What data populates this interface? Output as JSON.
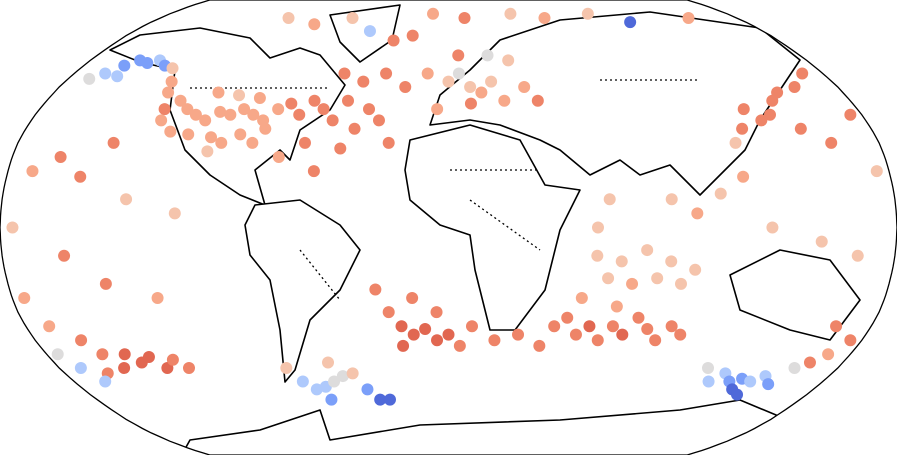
{
  "map": {
    "projection": "robinson",
    "points": {
      "lon": [
        -160,
        -155,
        -150,
        -145,
        -140,
        -165,
        -170,
        -158,
        -135,
        -130,
        -128,
        -125,
        -124,
        -120,
        -115,
        -110,
        -105,
        -100,
        -95,
        -90,
        -85,
        -80,
        -75,
        -70,
        -118,
        -110,
        -100,
        -95,
        -88,
        -82,
        -105,
        -95,
        -85,
        -78,
        -100,
        -65,
        -60,
        -55,
        -50,
        -45,
        -40,
        -35,
        -30,
        -25,
        -50,
        -40,
        -30,
        -20,
        -45,
        -60,
        -55,
        -70,
        -45,
        -30,
        -20,
        -60,
        -10,
        10,
        40,
        60,
        90,
        110,
        150,
        -100,
        -80,
        0,
        5,
        10,
        15,
        20,
        25,
        -5,
        10,
        30,
        20,
        35,
        40,
        5,
        -10,
        130,
        135,
        140,
        145,
        150,
        125,
        160,
        170,
        120,
        150,
        160,
        175,
        120,
        110,
        100,
        130,
        150,
        165,
        175,
        -170,
        -160,
        -150,
        -140,
        -175,
        -155,
        -140,
        -120,
        -130,
        -110,
        60,
        70,
        80,
        90,
        100,
        65,
        75,
        85,
        95,
        60,
        65,
        90,
        -20,
        -15,
        -10,
        -5,
        0,
        -25,
        -30,
        -15,
        5,
        -20,
        10,
        -5,
        45,
        50,
        55,
        60,
        65,
        70,
        75,
        80,
        85,
        90,
        95,
        100,
        40,
        55,
        70,
        30,
        20,
        -145,
        -140,
        -135,
        -130,
        -125,
        -120,
        -150,
        -155,
        -160,
        -170,
        -165,
        -175,
        -160,
        -170,
        -175,
        -70,
        -65,
        -60,
        -55,
        -50,
        -45,
        -60,
        -40,
        -35,
        -30,
        -75,
        -55,
        130,
        135,
        140,
        145,
        150,
        155,
        140,
        145,
        160,
        120,
        125,
        165,
        170,
        175,
        165
      ],
      "lat": [
        58,
        60,
        59,
        60,
        58,
        55,
        53,
        54,
        57,
        52,
        48,
        42,
        38,
        45,
        42,
        40,
        38,
        41,
        40,
        42,
        40,
        38,
        42,
        44,
        34,
        33,
        32,
        30,
        33,
        30,
        48,
        47,
        46,
        35,
        27,
        40,
        45,
        42,
        38,
        45,
        35,
        42,
        38,
        30,
        55,
        52,
        55,
        50,
        28,
        30,
        20,
        25,
        72,
        68,
        70,
        78,
        80,
        78,
        80,
        78,
        80,
        76,
        78,
        78,
        75,
        52,
        55,
        50,
        48,
        52,
        45,
        42,
        44,
        60,
        62,
        50,
        45,
        62,
        55,
        42,
        38,
        40,
        45,
        48,
        35,
        50,
        55,
        30,
        35,
        30,
        40,
        18,
        12,
        5,
        0,
        -5,
        -10,
        20,
        20,
        25,
        18,
        30,
        0,
        -10,
        -20,
        -25,
        10,
        5,
        -10,
        -12,
        -8,
        -12,
        -15,
        -18,
        -20,
        -18,
        -20,
        0,
        10,
        10,
        -35,
        -38,
        -36,
        -40,
        -38,
        -30,
        -22,
        -25,
        -42,
        -42,
        -35,
        -30,
        -35,
        -32,
        -38,
        -35,
        -40,
        -35,
        -38,
        -32,
        -36,
        -40,
        -35,
        -38,
        -42,
        -25,
        -28,
        -38,
        -40,
        -45,
        -48,
        -46,
        -50,
        -47,
        -50,
        -50,
        -45,
        -52,
        -50,
        -55,
        -45,
        -40,
        -35,
        -25,
        -55,
        -58,
        -57,
        -55,
        -53,
        -52,
        -62,
        -58,
        -62,
        -62,
        -50,
        -48,
        -52,
        -55,
        -54,
        -55,
        -53,
        -56,
        -58,
        -60,
        -50,
        -50,
        -55,
        -48,
        -45,
        -40,
        -35
      ],
      "color": [
        "#7b9ff9",
        "#7b9ff9",
        "#7b9ff9",
        "#aec9fc",
        "#7b9ff9",
        "#aec9fc",
        "#dddcdc",
        "#aec9fc",
        "#f5c4ac",
        "#f7a889",
        "#f7a889",
        "#ee8468",
        "#f7a889",
        "#f7a889",
        "#f7a889",
        "#f7a889",
        "#f7a889",
        "#f7a889",
        "#f7a889",
        "#f7a889",
        "#f7a889",
        "#f7a889",
        "#f7a889",
        "#ee8468",
        "#f7a889",
        "#f7a889",
        "#f7a889",
        "#f7a889",
        "#f7a889",
        "#f7a889",
        "#f7a889",
        "#f5c4ac",
        "#f7a889",
        "#f7a889",
        "#f5c4ac",
        "#ee8468",
        "#ee8468",
        "#ee8468",
        "#ee8468",
        "#ee8468",
        "#ee8468",
        "#ee8468",
        "#ee8468",
        "#ee8468",
        "#ee8468",
        "#ee8468",
        "#ee8468",
        "#ee8468",
        "#ee8468",
        "#ee8468",
        "#ee8468",
        "#f7a889",
        "#aec9fc",
        "#ee8468",
        "#ee8468",
        "#f5c4ac",
        "#f7a889",
        "#ee8468",
        "#f5c4ac",
        "#f7a889",
        "#f5c4ac",
        "#4f69d9",
        "#f7a889",
        "#f5c4ac",
        "#f7a889",
        "#f5c4ac",
        "#dddcdc",
        "#f5c4ac",
        "#f7a889",
        "#f5c4ac",
        "#f7a889",
        "#f7a889",
        "#ee8468",
        "#f5c4ac",
        "#dddcdc",
        "#f7a889",
        "#ee8468",
        "#ee8468",
        "#f7a889",
        "#ee8468",
        "#ee8468",
        "#ee8468",
        "#ee8468",
        "#ee8468",
        "#ee8468",
        "#ee8468",
        "#ee8468",
        "#f5c4ac",
        "#ee8468",
        "#ee8468",
        "#ee8468",
        "#f7a889",
        "#f5c4ac",
        "#f7a889",
        "#f5c4ac",
        "#f5c4ac",
        "#f5c4ac",
        "#f5c4ac",
        "#f7a889",
        "#ee8468",
        "#ee8468",
        "#ee8468",
        "#f5c4ac",
        "#ee8468",
        "#ee8468",
        "#f7a889",
        "#f5c4ac",
        "#f5c4ac",
        "#f5c4ac",
        "#f5c4ac",
        "#f5c4ac",
        "#f5c4ac",
        "#f5c4ac",
        "#f5c4ac",
        "#f7a889",
        "#f5c4ac",
        "#f5c4ac",
        "#f5c4ac",
        "#f5c4ac",
        "#f5c4ac",
        "#e16751",
        "#e16751",
        "#e16751",
        "#e16751",
        "#e16751",
        "#ee8468",
        "#ee8468",
        "#ee8468",
        "#ee8468",
        "#e16751",
        "#ee8468",
        "#ee8468",
        "#ee8468",
        "#ee8468",
        "#ee8468",
        "#e16751",
        "#ee8468",
        "#ee8468",
        "#e16751",
        "#ee8468",
        "#ee8468",
        "#ee8468",
        "#ee8468",
        "#ee8468",
        "#ee8468",
        "#f7a889",
        "#f7a889",
        "#ee8468",
        "#ee8468",
        "#e16751",
        "#e16751",
        "#e16751",
        "#e16751",
        "#ee8468",
        "#ee8468",
        "#e16751",
        "#ee8468",
        "#ee8468",
        "#aec9fc",
        "#aec9fc",
        "#dddcdc",
        "#ee8468",
        "#f7a889",
        "#f7a889",
        "#aec9fc",
        "#aec9fc",
        "#aec9fc",
        "#dddcdc",
        "#dddcdc",
        "#f5c4ac",
        "#7b9ff9",
        "#7b9ff9",
        "#4f69d9",
        "#4f69d9",
        "#f5c4ac",
        "#f5c4ac",
        "#aec9fc",
        "#7b9ff9",
        "#7b9ff9",
        "#aec9fc",
        "#aec9fc",
        "#7b9ff9",
        "#4f69d9",
        "#4f69d9",
        "#dddcdc",
        "#dddcdc",
        "#aec9fc",
        "#ee8468",
        "#f7a889",
        "#ee8468",
        "#ee8468"
      ]
    }
  }
}
